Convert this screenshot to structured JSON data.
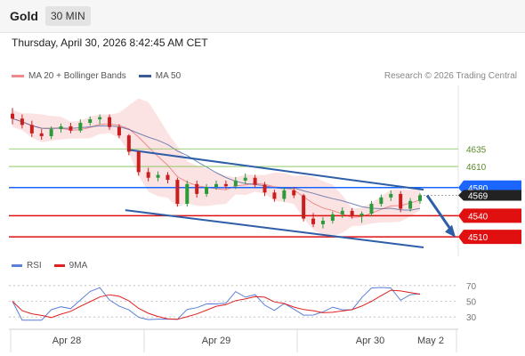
{
  "header": {
    "title": "Gold",
    "timeframe": "30 MIN"
  },
  "datetime": "Thursday, April 30, 2026 8:42:45 AM CET",
  "legend": {
    "items": [
      {
        "label": "MA 20 + Bollinger Bands",
        "color": "#f08a8a"
      },
      {
        "label": "MA 50",
        "color": "#3a5a9a"
      }
    ],
    "credit": "Research © 2026 Trading Central"
  },
  "rsi_legend": {
    "items": [
      {
        "label": "RSI",
        "color": "#5b7fd6"
      },
      {
        "label": "9MA",
        "color": "#e02020"
      }
    ]
  },
  "chart_data": [
    {
      "type": "candlestick",
      "price_range": [
        4490,
        4720
      ],
      "x_axis": {
        "ticks": [
          "Apr 28",
          "Apr 29",
          "Apr 30",
          "May 2"
        ]
      },
      "levels": [
        {
          "value": 4635,
          "label": "4635",
          "color": "#7fbf50",
          "style": "text"
        },
        {
          "value": 4610,
          "label": "4610",
          "color": "#7fbf50",
          "style": "text"
        },
        {
          "value": 4580,
          "label": "4580",
          "color": "#1a66ff",
          "style": "badge"
        },
        {
          "value": 4540,
          "label": "4540",
          "color": "#e01010",
          "style": "badge"
        },
        {
          "value": 4510,
          "label": "4510",
          "color": "#e01010",
          "style": "badge"
        }
      ],
      "last_price": {
        "value": 4569,
        "label": "4569",
        "color": "#222222"
      },
      "ohlc": [
        [
          4685,
          4693,
          4670,
          4678
        ],
        [
          4678,
          4684,
          4664,
          4669
        ],
        [
          4669,
          4675,
          4652,
          4657
        ],
        [
          4657,
          4663,
          4648,
          4653
        ],
        [
          4653,
          4667,
          4649,
          4663
        ],
        [
          4663,
          4671,
          4658,
          4667
        ],
        [
          4667,
          4672,
          4657,
          4661
        ],
        [
          4661,
          4677,
          4658,
          4672
        ],
        [
          4672,
          4681,
          4668,
          4677
        ],
        [
          4677,
          4684,
          4670,
          4680
        ],
        [
          4680,
          4684,
          4662,
          4666
        ],
        [
          4666,
          4670,
          4650,
          4654
        ],
        [
          4654,
          4656,
          4626,
          4631
        ],
        [
          4631,
          4632,
          4597,
          4602
        ],
        [
          4602,
          4608,
          4589,
          4594
        ],
        [
          4594,
          4603,
          4589,
          4598
        ],
        [
          4598,
          4602,
          4586,
          4591
        ],
        [
          4591,
          4594,
          4553,
          4557
        ],
        [
          4557,
          4590,
          4553,
          4585
        ],
        [
          4585,
          4590,
          4566,
          4571
        ],
        [
          4571,
          4585,
          4567,
          4581
        ],
        [
          4581,
          4590,
          4577,
          4585
        ],
        [
          4585,
          4590,
          4578,
          4582
        ],
        [
          4582,
          4595,
          4578,
          4590
        ],
        [
          4590,
          4600,
          4585,
          4594
        ],
        [
          4594,
          4598,
          4580,
          4584
        ],
        [
          4584,
          4588,
          4568,
          4573
        ],
        [
          4573,
          4577,
          4560,
          4564
        ],
        [
          4564,
          4580,
          4560,
          4576
        ],
        [
          4576,
          4581,
          4565,
          4569
        ],
        [
          4569,
          4571,
          4532,
          4536
        ],
        [
          4536,
          4544,
          4524,
          4528
        ],
        [
          4528,
          4538,
          4522,
          4533
        ],
        [
          4533,
          4546,
          4529,
          4542
        ],
        [
          4542,
          4552,
          4537,
          4547
        ],
        [
          4547,
          4551,
          4536,
          4540
        ],
        [
          4540,
          4546,
          4530,
          4543
        ],
        [
          4543,
          4561,
          4539,
          4557
        ],
        [
          4557,
          4570,
          4553,
          4566
        ],
        [
          4566,
          4576,
          4561,
          4571
        ],
        [
          4571,
          4575,
          4545,
          4550
        ],
        [
          4550,
          4565,
          4546,
          4561
        ],
        [
          4561,
          4572,
          4557,
          4569
        ]
      ]
    },
    {
      "type": "line",
      "name": "RSI",
      "y_ticks": [
        70,
        50,
        30
      ],
      "ylim": [
        20,
        80
      ]
    }
  ]
}
